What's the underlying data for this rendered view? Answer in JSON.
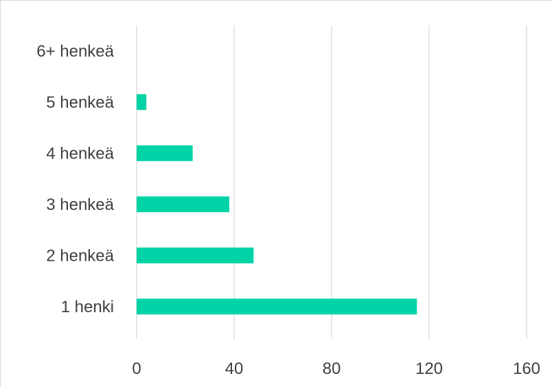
{
  "chart_data": {
    "type": "bar",
    "orientation": "horizontal",
    "title": "",
    "xlabel": "",
    "ylabel": "",
    "categories": [
      "1 henki",
      "2 henkeä",
      "3 henkeä",
      "4 henkeä",
      "5 henkeä",
      "6+ henkeä"
    ],
    "values": [
      115,
      48,
      38,
      23,
      4,
      0
    ],
    "xlim": [
      0,
      160
    ],
    "xticks": [
      0,
      40,
      80,
      120,
      160
    ],
    "xtick_labels": [
      "0",
      "40",
      "80",
      "120",
      "160"
    ],
    "grid": "vertical",
    "legend": "none",
    "bar_color": "#00d4a6",
    "grid_color": "#d9d9d9",
    "text_color": "#404040"
  }
}
